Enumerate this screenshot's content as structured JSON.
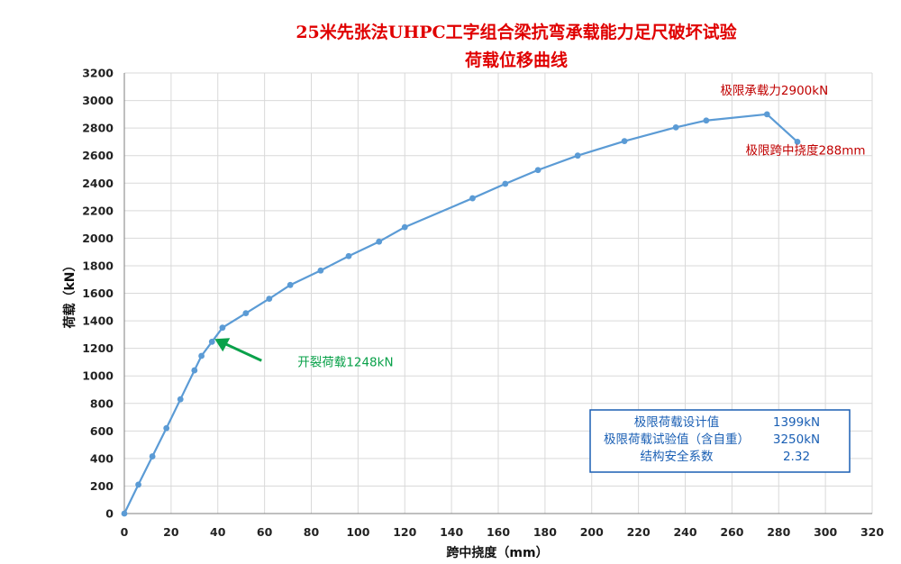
{
  "chart_data": {
    "type": "line",
    "title_lines": [
      "25米先张法UHPC工字组合梁抗弯承载能力足尺破坏试验",
      "荷载位移曲线"
    ],
    "xlabel": "跨中挠度（mm）",
    "ylabel": "荷载（kN）",
    "xlim": [
      0,
      320
    ],
    "ylim": [
      0,
      3200
    ],
    "x_ticks": [
      0,
      20,
      40,
      60,
      80,
      100,
      120,
      140,
      160,
      180,
      200,
      220,
      240,
      260,
      280,
      300,
      320
    ],
    "y_ticks": [
      0,
      200,
      400,
      600,
      800,
      1000,
      1200,
      1400,
      1600,
      1800,
      2000,
      2200,
      2400,
      2600,
      2800,
      3000,
      3200
    ],
    "grid": true,
    "legend": false,
    "line_color": "#5b9bd5",
    "series": [
      {
        "x": [
          0,
          6,
          12,
          18,
          24,
          30,
          33,
          37.5,
          42,
          52,
          62,
          71,
          84,
          96,
          109,
          120,
          149,
          163,
          177,
          194,
          214,
          236,
          249,
          275,
          288
        ],
        "y": [
          0,
          210,
          415,
          620,
          830,
          1040,
          1145,
          1248,
          1350,
          1455,
          1560,
          1660,
          1765,
          1870,
          1975,
          2080,
          2290,
          2395,
          2495,
          2600,
          2705,
          2805,
          2855,
          2900,
          2700
        ]
      }
    ],
    "annotations": [
      {
        "text": "极限承载力2900kN",
        "color": "#c00000",
        "x": 275,
        "y": 2900
      },
      {
        "text": "极限跨中挠度288mm",
        "color": "#c00000",
        "x": 288,
        "y": 2700
      },
      {
        "text": "开裂荷载1248kN",
        "color": "#0aa14a",
        "x": 37.5,
        "y": 1248,
        "arrow_color": "#0aa14a"
      }
    ],
    "info_box": {
      "border_color": "#1a5fb4",
      "rows": [
        {
          "label": "极限荷载设计值",
          "value": "1399kN"
        },
        {
          "label": "极限荷载试验值（含自重）",
          "value": "3250kN"
        },
        {
          "label": "结构安全系数",
          "value": "2.32"
        }
      ]
    }
  }
}
